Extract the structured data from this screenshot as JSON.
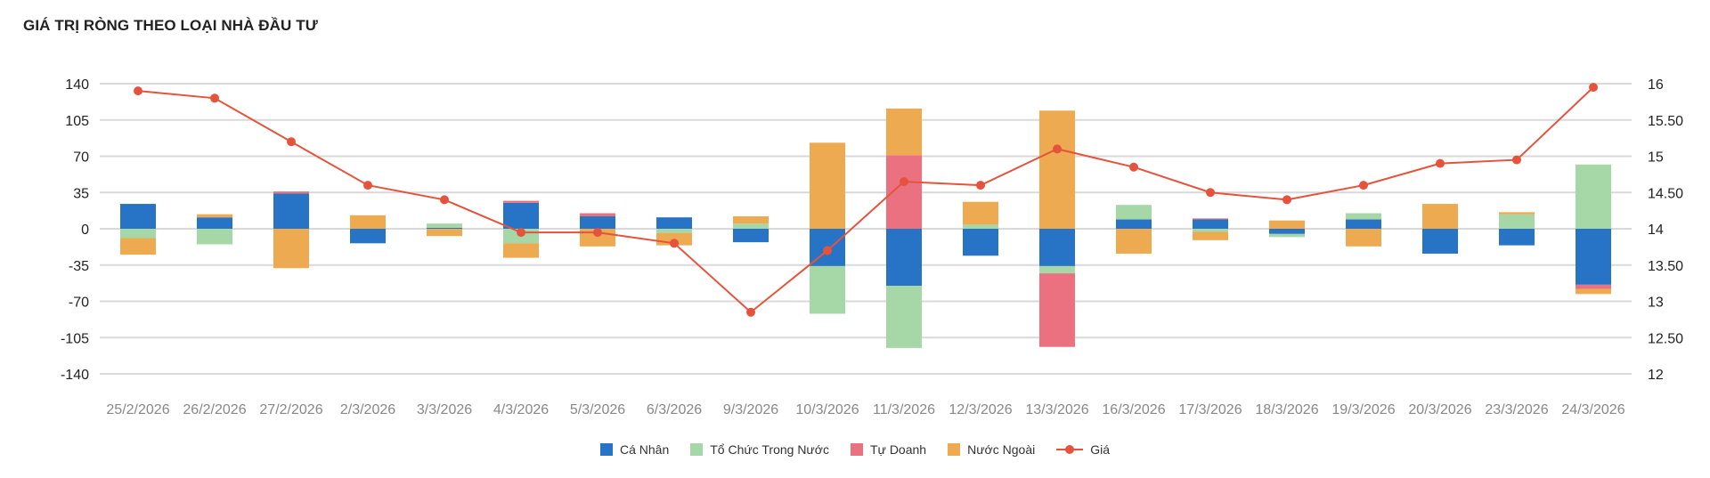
{
  "chart_data": {
    "type": "bar",
    "title": "GIÁ TRỊ RÒNG THEO LOẠI NHÀ ĐẦU TƯ",
    "categories": [
      "25/2/2026",
      "26/2/2026",
      "27/2/2026",
      "2/3/2026",
      "3/3/2026",
      "4/3/2026",
      "5/3/2026",
      "6/3/2026",
      "9/3/2026",
      "10/3/2026",
      "11/3/2026",
      "12/3/2026",
      "13/3/2026",
      "16/3/2026",
      "17/3/2026",
      "18/3/2026",
      "19/3/2026",
      "20/3/2026",
      "23/3/2026",
      "24/3/2026"
    ],
    "stacked": true,
    "series": [
      {
        "name": "Cá Nhân",
        "color": "#2773c6",
        "values": [
          24,
          11,
          34,
          -14,
          1,
          25,
          12,
          11,
          -13,
          -36,
          -55,
          -26,
          -36,
          9,
          9,
          -5,
          9,
          -24,
          -16,
          -54
        ]
      },
      {
        "name": "Tổ Chức Trong Nước",
        "color": "#a5d7a7",
        "values": [
          -9,
          -15,
          0,
          0,
          4,
          -14,
          0,
          -4,
          5,
          -46,
          -60,
          4,
          -7,
          14,
          -3,
          -3,
          6,
          0,
          14,
          62
        ]
      },
      {
        "name": "Tự Doanh",
        "color": "#ec7180",
        "values": [
          0,
          0,
          2,
          0,
          0,
          2,
          3,
          0,
          0,
          0,
          71,
          0,
          -71,
          0,
          1,
          0,
          0,
          0,
          0,
          -4
        ]
      },
      {
        "name": "Nước Ngoài",
        "color": "#edaa50",
        "values": [
          -16,
          3,
          -38,
          13,
          -7,
          -14,
          -17,
          -12,
          7,
          83,
          45,
          22,
          114,
          -24,
          -8,
          8,
          -17,
          24,
          2,
          -5
        ]
      }
    ],
    "line_series": {
      "name": "Giá",
      "color": "#e5533d",
      "axis": "right",
      "values": [
        15.9,
        15.8,
        15.2,
        14.6,
        14.4,
        13.95,
        13.95,
        13.8,
        12.85,
        13.7,
        14.65,
        14.6,
        15.1,
        14.85,
        14.5,
        14.4,
        14.6,
        14.9,
        14.95,
        15.95
      ]
    },
    "y_left": {
      "min": -140,
      "max": 140,
      "ticks": [
        140,
        105,
        70,
        35,
        0,
        -35,
        -70,
        -105,
        -140
      ]
    },
    "y_right": {
      "min": 12,
      "max": 16,
      "ticks": [
        "16",
        "15.50",
        "15",
        "14.50",
        "14",
        "13.50",
        "13",
        "12.50",
        "12"
      ]
    },
    "grid": true,
    "legend_position": "bottom-center"
  }
}
